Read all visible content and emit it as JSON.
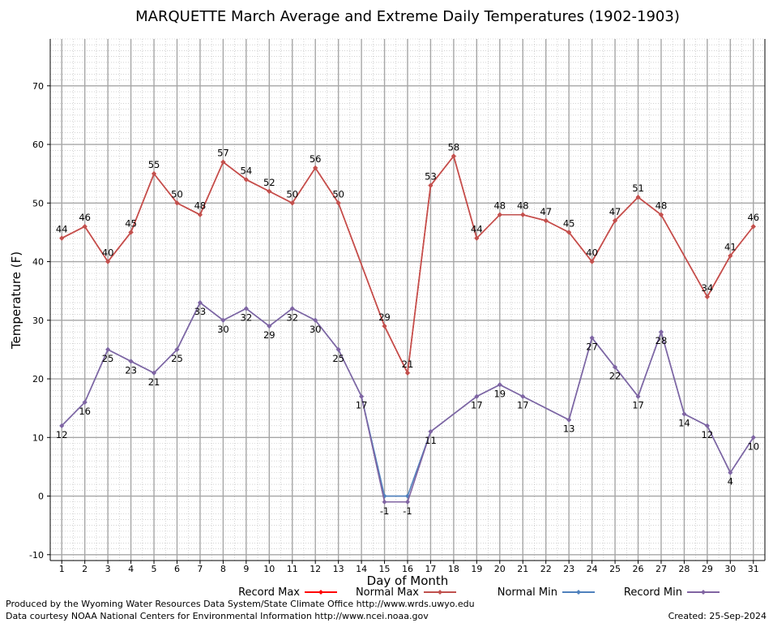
{
  "chart_data": {
    "type": "line",
    "title": "MARQUETTE March Average and Extreme Daily Temperatures (1902-1903)",
    "xlabel": "Day of Month",
    "ylabel": "Temperature (F)",
    "xlim": [
      0.5,
      31.5
    ],
    "ylim": [
      -11,
      78
    ],
    "yticks": [
      -10,
      0,
      10,
      20,
      30,
      40,
      50,
      60,
      70
    ],
    "grid": true,
    "legend_position": "bottom",
    "x": [
      1,
      2,
      3,
      4,
      5,
      6,
      7,
      8,
      9,
      10,
      11,
      12,
      13,
      14,
      15,
      16,
      17,
      18,
      19,
      20,
      21,
      22,
      23,
      24,
      25,
      26,
      27,
      28,
      29,
      30,
      31
    ],
    "series": [
      {
        "name": "Record Max",
        "color": "#ff0000",
        "values": [
          44,
          46,
          40,
          45,
          55,
          50,
          48,
          57,
          54,
          52,
          50,
          56,
          50,
          null,
          29,
          21,
          53,
          58,
          44,
          48,
          48,
          47,
          45,
          40,
          47,
          51,
          48,
          null,
          34,
          41,
          46
        ]
      },
      {
        "name": "Normal Max",
        "color": "#c0504d",
        "values": [
          44,
          46,
          40,
          45,
          55,
          50,
          48,
          57,
          54,
          52,
          50,
          56,
          50,
          null,
          29,
          21,
          53,
          58,
          44,
          48,
          48,
          47,
          45,
          40,
          47,
          51,
          48,
          null,
          34,
          41,
          46
        ]
      },
      {
        "name": "Normal Min",
        "color": "#4f81bd",
        "values": [
          12,
          16,
          25,
          23,
          21,
          25,
          33,
          30,
          32,
          29,
          32,
          30,
          25,
          17,
          0,
          0,
          11,
          null,
          17,
          19,
          17,
          null,
          13,
          27,
          22,
          17,
          28,
          14,
          12,
          4,
          10
        ]
      },
      {
        "name": "Record Min",
        "color": "#8064a2",
        "values": [
          12,
          16,
          25,
          23,
          21,
          25,
          33,
          30,
          32,
          29,
          32,
          30,
          25,
          17,
          -1,
          -1,
          11,
          null,
          17,
          19,
          17,
          null,
          13,
          27,
          22,
          17,
          28,
          14,
          12,
          4,
          10
        ]
      }
    ],
    "data_labels": {
      "max": [
        44,
        46,
        40,
        45,
        55,
        50,
        48,
        57,
        54,
        52,
        50,
        56,
        50,
        null,
        29,
        21,
        53,
        58,
        44,
        48,
        48,
        47,
        45,
        40,
        47,
        51,
        48,
        null,
        34,
        41,
        46
      ],
      "min": [
        12,
        16,
        25,
        23,
        21,
        25,
        33,
        30,
        32,
        29,
        32,
        30,
        25,
        17,
        -1,
        -1,
        11,
        null,
        17,
        19,
        17,
        null,
        13,
        27,
        22,
        17,
        28,
        14,
        12,
        4,
        10
      ]
    }
  },
  "footer": {
    "produced_by": "Produced by the Wyoming Water Resources Data System/State Climate Office http://www.wrds.uwyo.edu",
    "courtesy": "Data courtesy NOAA National Centers for Environmental Information http://www.ncei.noaa.gov",
    "created": "Created:  25-Sep-2024"
  }
}
